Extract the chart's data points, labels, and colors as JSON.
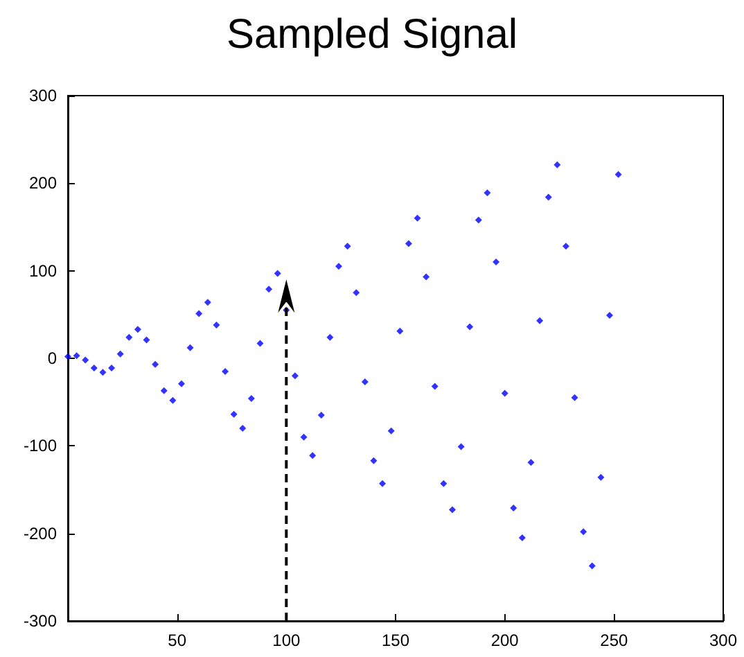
{
  "chart_data": {
    "type": "scatter",
    "title": "Sampled Signal",
    "x": [
      0,
      4,
      8,
      12,
      16,
      20,
      24,
      28,
      32,
      36,
      40,
      44,
      48,
      52,
      56,
      60,
      64,
      68,
      72,
      76,
      80,
      84,
      88,
      92,
      96,
      100,
      104,
      108,
      112,
      116,
      120,
      124,
      128,
      132,
      136,
      140,
      144,
      148,
      152,
      156,
      160,
      164,
      168,
      172,
      176,
      180,
      184,
      188,
      192,
      196,
      200,
      204,
      208,
      212,
      216,
      220,
      224,
      228,
      232,
      236,
      240,
      244,
      248,
      252
    ],
    "series": [
      {
        "color": "#0000ff",
        "values": [
          2,
          3,
          -2,
          -11,
          -16,
          -11,
          5,
          24,
          33,
          21,
          -7,
          -37,
          -48,
          -29,
          12,
          51,
          64,
          38,
          -15,
          -64,
          -80,
          -46,
          17,
          79,
          97,
          55,
          -20,
          -90,
          -111,
          -65,
          24,
          105,
          128,
          75,
          -27,
          -117,
          -143,
          -83,
          31,
          131,
          160,
          93,
          -32,
          -143,
          -173,
          -101,
          36,
          158,
          189,
          110,
          -40,
          -171,
          -205,
          -119,
          43,
          184,
          221,
          128,
          -45,
          -198,
          -237,
          -136,
          49,
          210
        ]
      }
    ],
    "xlim": [
      0,
      300
    ],
    "xticks": [
      {
        "value": 0,
        "label": null
      },
      50,
      100,
      150,
      200,
      250,
      300
    ],
    "ylim": [
      -300,
      300
    ],
    "yticks": [
      -300,
      -200,
      -100,
      0,
      100,
      200,
      300
    ],
    "grid": false,
    "marker": "diamond"
  }
}
